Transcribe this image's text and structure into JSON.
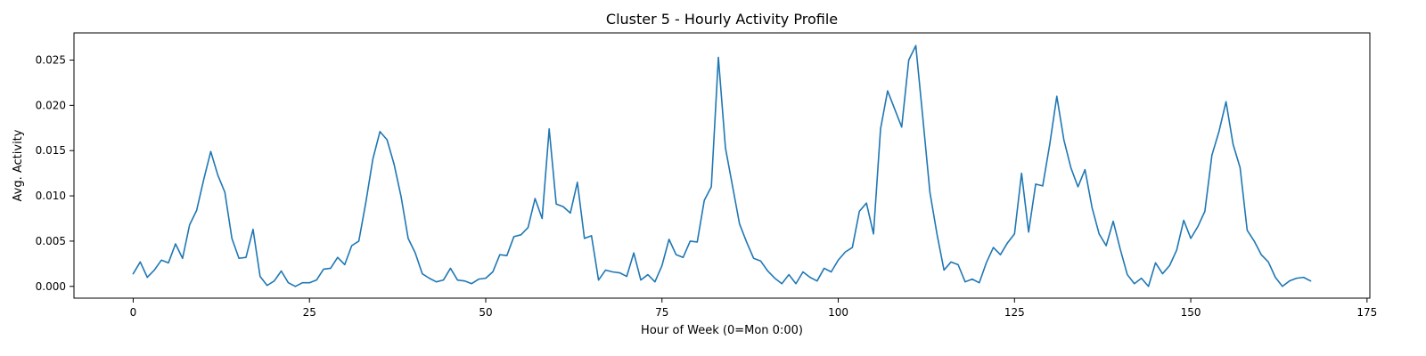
{
  "chart_data": {
    "type": "line",
    "title": "Cluster 5 - Hourly Activity Profile",
    "xlabel": "Hour of Week (0=Mon 0:00)",
    "ylabel": "Avg. Activity",
    "xlim": [
      -8.4,
      175.4
    ],
    "ylim": [
      -0.0013,
      0.028
    ],
    "xticks": [
      0,
      25,
      50,
      75,
      100,
      125,
      150,
      175
    ],
    "xtick_labels": [
      "0",
      "25",
      "50",
      "75",
      "100",
      "125",
      "150",
      "175"
    ],
    "yticks": [
      0.0,
      0.005,
      0.01,
      0.015,
      0.02,
      0.025
    ],
    "ytick_labels": [
      "0.000",
      "0.005",
      "0.010",
      "0.015",
      "0.020",
      "0.025"
    ],
    "grid": false,
    "series": [
      {
        "color": "#1f77b4",
        "x": [
          0,
          1,
          2,
          3,
          4,
          5,
          6,
          7,
          8,
          9,
          10,
          11,
          12,
          13,
          14,
          15,
          16,
          17,
          18,
          19,
          20,
          21,
          22,
          23,
          24,
          25,
          26,
          27,
          28,
          29,
          30,
          31,
          32,
          33,
          34,
          35,
          36,
          37,
          38,
          39,
          40,
          41,
          42,
          43,
          44,
          45,
          46,
          47,
          48,
          49,
          50,
          51,
          52,
          53,
          54,
          55,
          56,
          57,
          58,
          59,
          60,
          61,
          62,
          63,
          64,
          65,
          66,
          67,
          68,
          69,
          70,
          71,
          72,
          73,
          74,
          75,
          76,
          77,
          78,
          79,
          80,
          81,
          82,
          83,
          84,
          85,
          86,
          87,
          88,
          89,
          90,
          91,
          92,
          93,
          94,
          95,
          96,
          97,
          98,
          99,
          100,
          101,
          102,
          103,
          104,
          105,
          106,
          107,
          108,
          109,
          110,
          111,
          112,
          113,
          114,
          115,
          116,
          117,
          118,
          119,
          120,
          121,
          122,
          123,
          124,
          125,
          126,
          127,
          128,
          129,
          130,
          131,
          132,
          133,
          134,
          135,
          136,
          137,
          138,
          139,
          140,
          141,
          142,
          143,
          144,
          145,
          146,
          147,
          148,
          149,
          150,
          151,
          152,
          153,
          154,
          155,
          156,
          157,
          158,
          159,
          160,
          161,
          162,
          163,
          164,
          165,
          166,
          167
        ],
        "y": [
          0.0014,
          0.0027,
          0.001,
          0.0018,
          0.0029,
          0.0026,
          0.0047,
          0.0031,
          0.0068,
          0.0084,
          0.0118,
          0.0149,
          0.0123,
          0.0104,
          0.0053,
          0.0031,
          0.0032,
          0.0063,
          0.0011,
          0.0001,
          0.0006,
          0.0017,
          0.0004,
          0.0,
          0.0004,
          0.0004,
          0.0007,
          0.0019,
          0.002,
          0.0032,
          0.0024,
          0.0045,
          0.005,
          0.0093,
          0.0141,
          0.0171,
          0.0162,
          0.0135,
          0.0099,
          0.0053,
          0.0037,
          0.0014,
          0.0009,
          0.0005,
          0.0007,
          0.002,
          0.0007,
          0.0006,
          0.0003,
          0.0008,
          0.0009,
          0.0016,
          0.0035,
          0.0034,
          0.0055,
          0.0057,
          0.0065,
          0.0097,
          0.0075,
          0.0174,
          0.0091,
          0.0088,
          0.0081,
          0.0115,
          0.0053,
          0.0056,
          0.0007,
          0.0018,
          0.0016,
          0.0015,
          0.0011,
          0.0037,
          0.0007,
          0.0013,
          0.0005,
          0.0023,
          0.0052,
          0.0035,
          0.0032,
          0.005,
          0.0049,
          0.0095,
          0.011,
          0.0253,
          0.0153,
          0.0111,
          0.0069,
          0.0049,
          0.0031,
          0.0028,
          0.0017,
          0.0009,
          0.0003,
          0.0013,
          0.0003,
          0.0016,
          0.001,
          0.0006,
          0.002,
          0.0016,
          0.0029,
          0.0038,
          0.0043,
          0.0083,
          0.0092,
          0.0058,
          0.0174,
          0.0216,
          0.0196,
          0.0176,
          0.025,
          0.0266,
          0.0186,
          0.0104,
          0.0058,
          0.0018,
          0.0027,
          0.0024,
          0.0005,
          0.0008,
          0.0004,
          0.0026,
          0.0043,
          0.0035,
          0.0048,
          0.0058,
          0.0125,
          0.006,
          0.0113,
          0.0111,
          0.0157,
          0.021,
          0.0162,
          0.0131,
          0.011,
          0.0129,
          0.0087,
          0.0058,
          0.0045,
          0.0072,
          0.0041,
          0.0013,
          0.0003,
          0.0009,
          0.0,
          0.0026,
          0.0014,
          0.0023,
          0.004,
          0.0073,
          0.0053,
          0.0066,
          0.0083,
          0.0145,
          0.0171,
          0.0204,
          0.0157,
          0.0131,
          0.0062,
          0.005,
          0.0035,
          0.0027,
          0.001,
          0.0,
          0.0006,
          0.0009,
          0.001,
          0.0006
        ]
      }
    ]
  }
}
